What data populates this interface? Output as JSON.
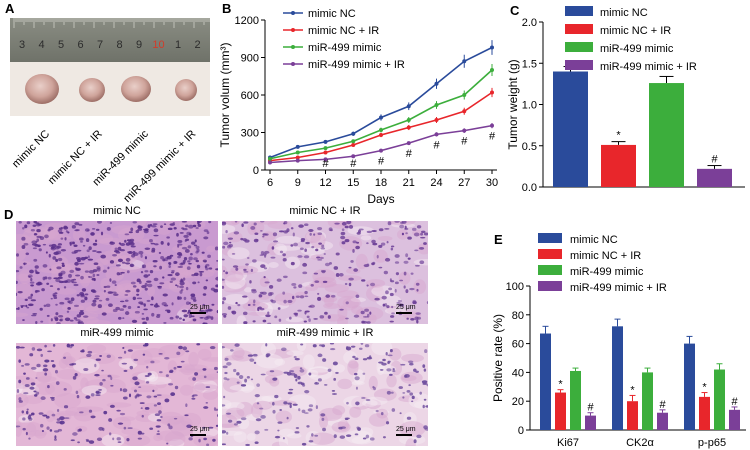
{
  "panels": {
    "A": "A",
    "B": "B",
    "C": "C",
    "D": "D",
    "E": "E"
  },
  "ruler_numbers": [
    "3",
    "4",
    "5",
    "6",
    "7",
    "8",
    "9",
    "10",
    "1",
    "2"
  ],
  "groups": [
    "mimic NC",
    "mimic NC + IR",
    "miR-499 mimic",
    "miR-499 mimic + IR"
  ],
  "colors": {
    "mimic_nc": "#2a4b9b",
    "mimic_nc_ir": "#e8262b",
    "mir499": "#3cae3c",
    "mir499_ir": "#7b3f98"
  },
  "micro_titles": [
    "mimic NC",
    "mimic NC + IR",
    "miR-499 mimic",
    "miR-499 mimic + IR"
  ],
  "scale_label": "25 μm",
  "chart_data": [
    {
      "type": "line",
      "xlabel": "Days",
      "ylabel": "Tumor volum (mm³)",
      "x": [
        6,
        9,
        12,
        15,
        18,
        21,
        24,
        27,
        30
      ],
      "ylim": [
        0,
        1200
      ],
      "yticks": [
        0,
        300,
        600,
        900,
        1200
      ],
      "series": [
        {
          "name": "mimic NC",
          "values": [
            100,
            185,
            225,
            290,
            420,
            510,
            690,
            870,
            980
          ]
        },
        {
          "name": "mimic NC + IR",
          "values": [
            75,
            100,
            140,
            200,
            280,
            340,
            400,
            470,
            620
          ]
        },
        {
          "name": "miR-499 mimic",
          "values": [
            90,
            140,
            175,
            230,
            320,
            400,
            520,
            600,
            800
          ]
        },
        {
          "name": "miR-499 mimic + IR",
          "values": [
            60,
            75,
            85,
            110,
            155,
            215,
            285,
            315,
            355
          ]
        }
      ],
      "annotations": [
        "#",
        "#",
        "#",
        "#",
        "#",
        "#",
        "#"
      ]
    },
    {
      "type": "bar",
      "ylabel": "Tumor weight (g)",
      "categories": [
        "mimic NC",
        "mimic NC + IR",
        "miR-499 mimic",
        "miR-499 mimic + IR"
      ],
      "values": [
        1.4,
        0.51,
        1.26,
        0.22
      ],
      "errors": [
        0.06,
        0.04,
        0.08,
        0.04
      ],
      "marks": [
        "",
        "*",
        "",
        "#"
      ],
      "ylim": [
        0,
        2.0
      ],
      "yticks": [
        "0.0",
        "0.5",
        "1.0",
        "1.5",
        "2.0"
      ]
    },
    {
      "type": "bar",
      "ylabel": "Positive rate (%)",
      "categories": [
        "Ki67",
        "CK2α",
        "p-p65"
      ],
      "series": [
        {
          "name": "mimic NC",
          "values": [
            67,
            72,
            60
          ],
          "errors": [
            5,
            5,
            5
          ],
          "marks": [
            "",
            "",
            ""
          ]
        },
        {
          "name": "mimic NC + IR",
          "values": [
            26,
            20,
            23
          ],
          "errors": [
            2,
            4,
            3
          ],
          "marks": [
            "*",
            "*",
            "*"
          ]
        },
        {
          "name": "miR-499 mimic",
          "values": [
            41,
            40,
            42
          ],
          "errors": [
            2,
            3,
            4
          ],
          "marks": [
            "",
            "",
            ""
          ]
        },
        {
          "name": "miR-499 mimic + IR",
          "values": [
            10,
            12,
            14
          ],
          "errors": [
            2,
            2,
            2
          ],
          "marks": [
            "#",
            "#",
            "#"
          ]
        }
      ],
      "ylim": [
        0,
        100
      ],
      "yticks": [
        0,
        20,
        40,
        60,
        80,
        100
      ]
    }
  ]
}
